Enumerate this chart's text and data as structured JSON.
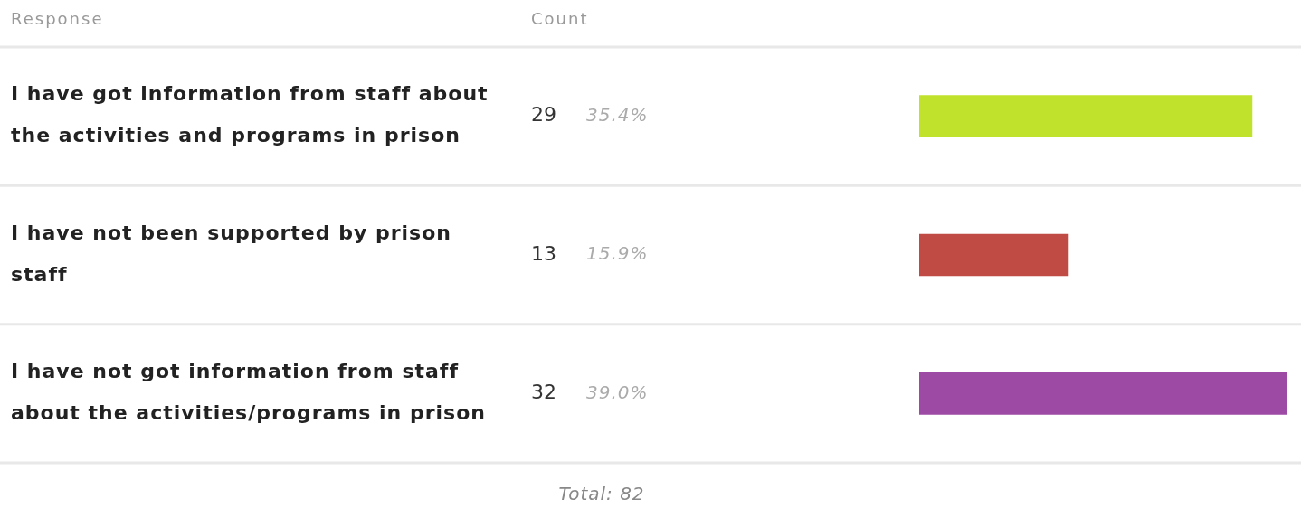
{
  "chart_data": {
    "type": "bar",
    "orientation": "horizontal",
    "ylabel": "Response",
    "xlabel": "Count",
    "categories": [
      "I have got information from staff about the activities and programs in prison",
      "I have not been supported by prison staff",
      "I have not got information from staff about the activities/programs in prison"
    ],
    "values": [
      29,
      13,
      32
    ],
    "colors": [
      "#c0e22c",
      "#c04b45",
      "#9c4aa3"
    ],
    "data_labels": true,
    "legend": false,
    "annotations": [
      "35.4%",
      "15.9%",
      "39.0%",
      "Total: 82"
    ]
  }
}
